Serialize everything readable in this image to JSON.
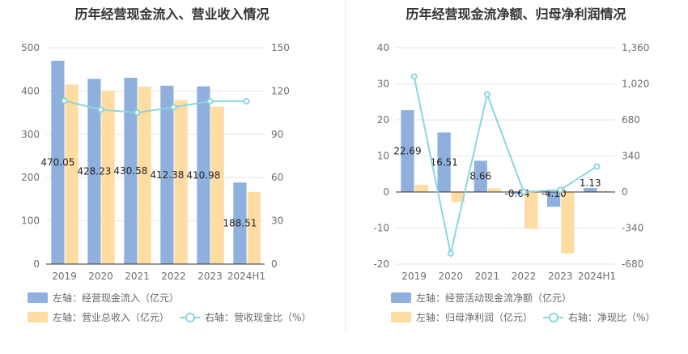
{
  "colors": {
    "bar_primary": "#8fb0dc",
    "bar_secondary": "#ffdca2",
    "line": "#8bd6dc",
    "grid": "#e6e6e6",
    "axis_text": "#6e6e6e"
  },
  "chart_data": [
    {
      "type": "bar",
      "title": "历年经营现金流入、营业收入情况",
      "categories": [
        "2019",
        "2020",
        "2021",
        "2022",
        "2023",
        "2024H1"
      ],
      "left_axis": {
        "min": 0,
        "max": 500,
        "ticks": [
          "0",
          "100",
          "200",
          "300",
          "400",
          "500"
        ]
      },
      "right_axis": {
        "min": 0,
        "max": 150,
        "ticks": [
          "0",
          "30",
          "60",
          "90",
          "120",
          "150"
        ]
      },
      "series": [
        {
          "name": "左轴：经营现金流入（亿元）",
          "axis": "left",
          "kind": "bar",
          "values": [
            470.05,
            428.23,
            430.58,
            412.38,
            410.98,
            188.51
          ],
          "labels": [
            "470.05",
            "428.23",
            "430.58",
            "412.38",
            "410.98",
            "188.51"
          ]
        },
        {
          "name": "左轴：营业总收入（亿元）",
          "axis": "left",
          "kind": "bar",
          "values": [
            415,
            400,
            410,
            379,
            364,
            167
          ]
        },
        {
          "name": "右轴：营收现金比（%）",
          "axis": "right",
          "kind": "line",
          "values": [
            113.3,
            107.1,
            105.0,
            108.8,
            112.9,
            113.0
          ]
        }
      ],
      "grid": true,
      "legend_position": "bottom"
    },
    {
      "type": "bar",
      "title": "历年经营现金流净额、归母净利润情况",
      "categories": [
        "2019",
        "2020",
        "2021",
        "2022",
        "2023",
        "2024H1"
      ],
      "left_axis": {
        "min": -20,
        "max": 40,
        "ticks": [
          "-20",
          "-10",
          "0",
          "10",
          "20",
          "30",
          "40"
        ]
      },
      "right_axis": {
        "min": -680,
        "max": 1360,
        "ticks": [
          "-680",
          "-340",
          "0",
          "340",
          "680",
          "1,020",
          "1,360"
        ]
      },
      "series": [
        {
          "name": "左轴：经营活动现金流净额（亿元）",
          "axis": "left",
          "kind": "bar",
          "values": [
            22.69,
            16.51,
            8.66,
            -0.64,
            -4.1,
            1.13
          ],
          "labels": [
            "22.69",
            "16.51",
            "8.66",
            "-0.64",
            "-4.10",
            "1.13"
          ]
        },
        {
          "name": "左轴：归母净利润（亿元）",
          "axis": "left",
          "kind": "bar",
          "values": [
            2.0,
            -2.8,
            1.0,
            -10.2,
            -17.0,
            0.3
          ]
        },
        {
          "name": "右轴：净现比（%）",
          "axis": "right",
          "kind": "line",
          "values": [
            1090,
            -580,
            920,
            0,
            20,
            240
          ]
        }
      ],
      "grid": true,
      "legend_position": "bottom"
    }
  ]
}
